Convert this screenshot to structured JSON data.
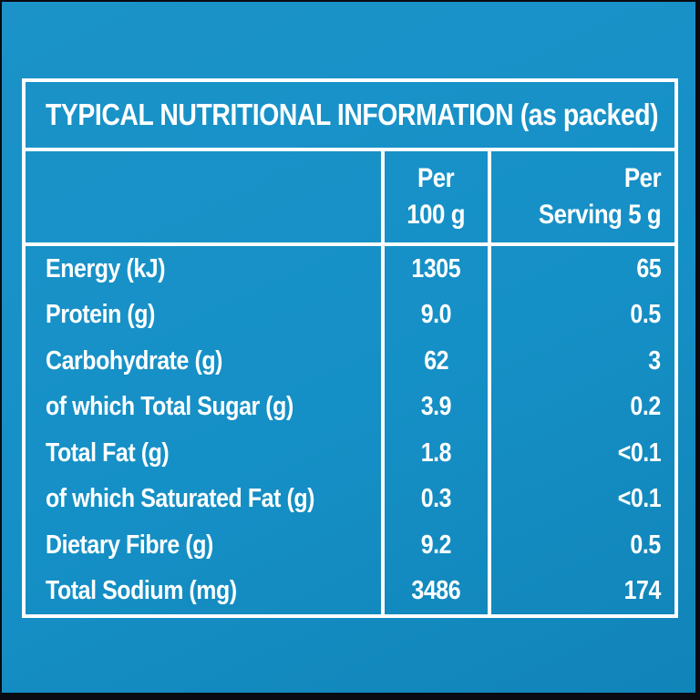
{
  "label": {
    "title": "TYPICAL NUTRITIONAL INFORMATION (as packed)",
    "header": {
      "per_100g_line1": "Per",
      "per_100g_line2": "100 g",
      "per_serving_line1": "Per",
      "per_serving_line2": "Serving 5 g"
    },
    "rows": [
      {
        "name": "Energy (kJ)",
        "per_100g": "1305",
        "per_serving": "65"
      },
      {
        "name": "Protein (g)",
        "per_100g": "9.0",
        "per_serving": "0.5"
      },
      {
        "name": "Carbohydrate (g)",
        "per_100g": "62",
        "per_serving": "3"
      },
      {
        "name": "of which Total Sugar (g)",
        "per_100g": "3.9",
        "per_serving": "0.2"
      },
      {
        "name": "Total Fat (g)",
        "per_100g": "1.8",
        "per_serving": "<0.1"
      },
      {
        "name": "of which Saturated Fat (g)",
        "per_100g": "0.3",
        "per_serving": "<0.1"
      },
      {
        "name": "Dietary Fibre (g)",
        "per_100g": "9.2",
        "per_serving": "0.5"
      },
      {
        "name": "Total Sodium (mg)",
        "per_100g": "3486",
        "per_serving": "174"
      }
    ],
    "colors": {
      "panel_background": "#1590c6",
      "table_border": "#ffffff",
      "text": "#ffffff",
      "outer_edge": "#0a0a12"
    }
  }
}
